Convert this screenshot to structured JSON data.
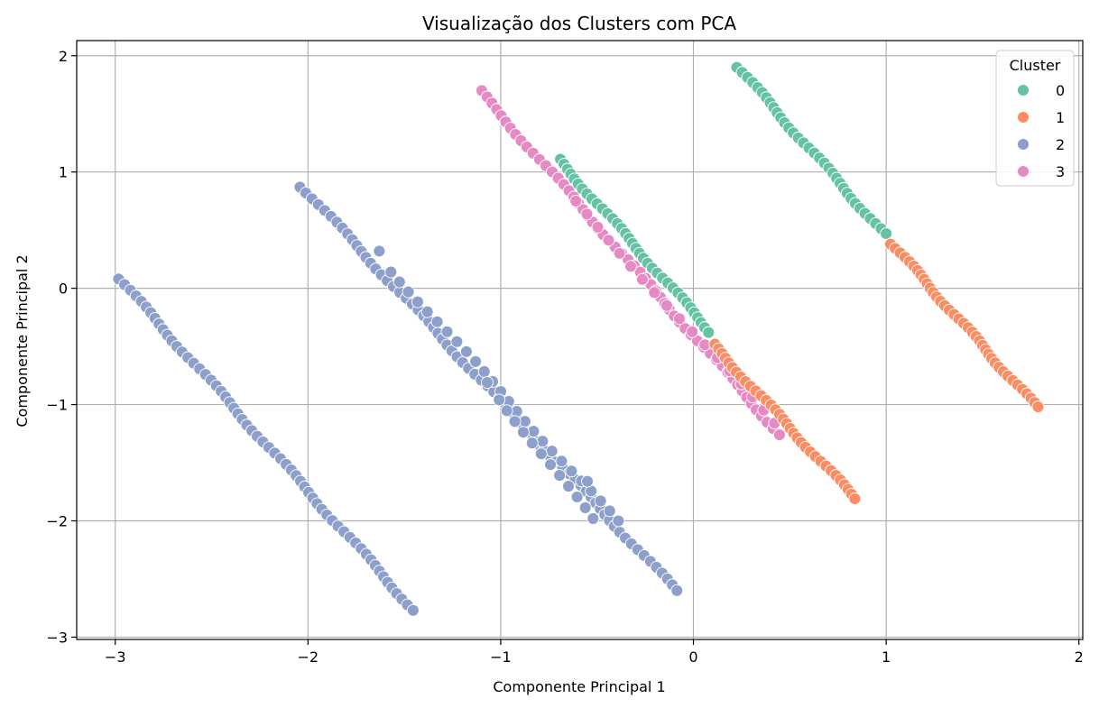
{
  "chart_data": {
    "type": "scatter",
    "title": "Visualização dos Clusters com PCA",
    "xlabel": "Componente Principal 1",
    "ylabel": "Componente Principal 2",
    "xlim": [
      -3.2,
      2.02
    ],
    "ylim": [
      -3.02,
      2.13
    ],
    "xticks": [
      -3,
      -2,
      -1,
      0,
      1,
      2
    ],
    "yticks": [
      -3,
      -2,
      -1,
      0,
      1,
      2
    ],
    "xtick_labels": [
      "−3",
      "−2",
      "−1",
      "0",
      "1",
      "2"
    ],
    "ytick_labels": [
      "−3",
      "−2",
      "−1",
      "0",
      "1",
      "2"
    ],
    "grid": true,
    "legend": {
      "title": "Cluster",
      "position": "top-right"
    },
    "series": [
      {
        "name": "0",
        "color": "#66c2a5",
        "segments": [
          {
            "x_start": 0.23,
            "y_start": 1.9,
            "x_end": 0.99,
            "y_end": 0.47,
            "count": 34
          },
          {
            "x_start": -0.7,
            "y_start": 1.11,
            "x_end": 0.09,
            "y_end": -0.38,
            "count": 36
          }
        ]
      },
      {
        "name": "1",
        "color": "#fc8d62",
        "segments": [
          {
            "x_start": 1.03,
            "y_start": 0.38,
            "x_end": 1.78,
            "y_end": -1.02,
            "count": 38
          },
          {
            "x_start": 0.1,
            "y_start": -0.48,
            "x_end": 0.84,
            "y_end": -1.81,
            "count": 34
          }
        ]
      },
      {
        "name": "2",
        "color": "#8da0cb",
        "segments": [
          {
            "x_start": -2.98,
            "y_start": 0.08,
            "x_end": -1.45,
            "y_end": -2.77,
            "count": 60
          },
          {
            "x_start": -2.03,
            "y_start": 0.87,
            "x_end": -0.09,
            "y_end": -2.6,
            "count": 70
          },
          {
            "x_start": -1.56,
            "y_start": 0.14,
            "x_end": -0.4,
            "y_end": -2.0,
            "count": 26
          },
          {
            "x_start": -1.0,
            "y_start": -0.96,
            "x_end": -0.53,
            "y_end": -1.98,
            "count": 12
          }
        ],
        "extra_points": [
          [
            -1.63,
            0.32
          ],
          [
            -1.07,
            -0.81
          ],
          [
            -0.55,
            -1.66
          ]
        ]
      },
      {
        "name": "3",
        "color": "#e78ac3",
        "segments": [
          {
            "x_start": -1.11,
            "y_start": 1.7,
            "x_end": 0.45,
            "y_end": -1.26,
            "count": 56
          },
          {
            "x_start": -0.62,
            "y_start": 0.75,
            "x_end": 0.42,
            "y_end": -1.16,
            "count": 18
          }
        ]
      }
    ]
  }
}
